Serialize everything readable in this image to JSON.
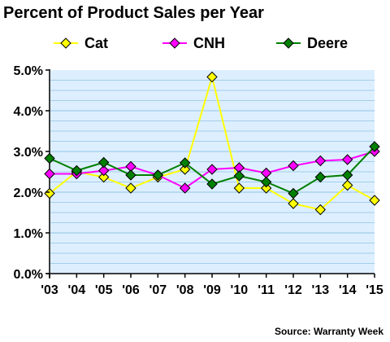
{
  "chart_data": {
    "type": "line",
    "title": "Percent of Product Sales per Year",
    "source": "Source: Warranty Week",
    "categories": [
      "'03",
      "'04",
      "'05",
      "'06",
      "'07",
      "'08",
      "'09",
      "'10",
      "'11",
      "'12",
      "'13",
      "'14",
      "'15"
    ],
    "series": [
      {
        "name": "Cat",
        "color": "#FFFF00",
        "values": [
          1.97,
          2.5,
          2.37,
          2.1,
          2.37,
          2.56,
          4.83,
          2.1,
          2.1,
          1.72,
          1.57,
          2.17,
          1.8
        ]
      },
      {
        "name": "CNH",
        "color": "#FF00FF",
        "values": [
          2.45,
          2.45,
          2.53,
          2.63,
          2.42,
          2.1,
          2.56,
          2.6,
          2.47,
          2.65,
          2.77,
          2.8,
          3.0
        ]
      },
      {
        "name": "Deere",
        "color": "#008000",
        "values": [
          2.83,
          2.53,
          2.73,
          2.42,
          2.42,
          2.72,
          2.2,
          2.4,
          2.25,
          1.97,
          2.37,
          2.42,
          3.12
        ]
      }
    ],
    "ylim": [
      0,
      5
    ],
    "yticks": [
      "0.0%",
      "1.0%",
      "2.0%",
      "3.0%",
      "4.0%",
      "5.0%"
    ],
    "xlabel": "",
    "ylabel": "",
    "grid": true,
    "legend_position": "top",
    "plot_background": "#DDEFFF",
    "grid_color": "#8FC3E2"
  }
}
